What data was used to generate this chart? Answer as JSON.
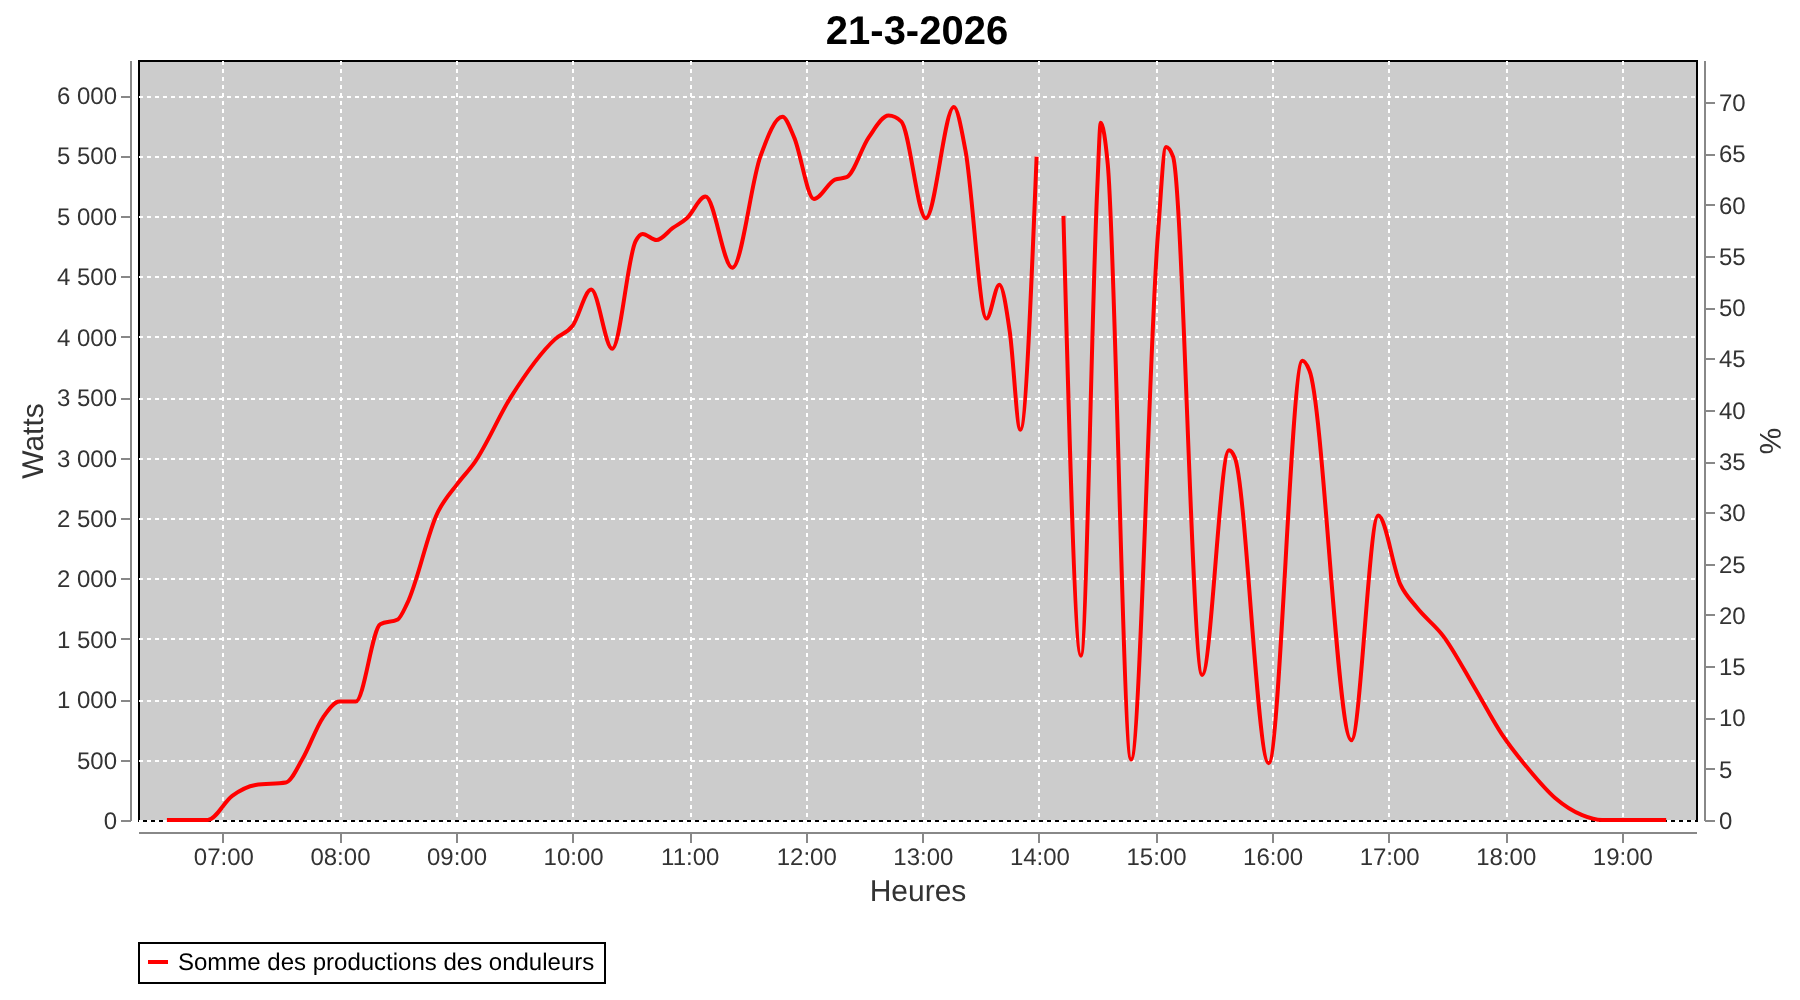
{
  "chart_data": {
    "type": "line",
    "title": "21-3-2026",
    "xlabel": "Heures",
    "ylabel": "Watts",
    "y2label": "%",
    "x": [
      6.52,
      6.87,
      7.08,
      7.28,
      7.54,
      7.68,
      7.86,
      8.0,
      8.14,
      8.35,
      8.5,
      8.58,
      8.84,
      9.01,
      9.16,
      9.47,
      9.85,
      10.0,
      10.16,
      10.34,
      10.54,
      10.6,
      10.72,
      10.86,
      10.98,
      11.14,
      11.37,
      11.61,
      11.8,
      11.9,
      12.07,
      12.25,
      12.35,
      12.54,
      12.71,
      12.82,
      13.03,
      13.27,
      13.37,
      13.55,
      13.66,
      13.75,
      13.84,
      13.98,
      14.04,
      14.17,
      14.21,
      14.36,
      14.5,
      14.53,
      14.59,
      14.79,
      15.02,
      15.09,
      15.15,
      15.4,
      15.63,
      15.68,
      15.97,
      16.26,
      16.32,
      16.68,
      16.91,
      17.1,
      17.24,
      17.47,
      17.74,
      17.97,
      18.2,
      18.43,
      18.66,
      18.83,
      19.38
    ],
    "series": [
      {
        "name": "Somme des productions des onduleurs",
        "color": "#ff0000",
        "values": [
          0,
          0,
          200,
          290,
          310,
          500,
          850,
          980,
          980,
          1620,
          1660,
          1790,
          2540,
          2780,
          2960,
          3500,
          3980,
          4090,
          4390,
          3900,
          4790,
          4850,
          4800,
          4900,
          4980,
          5160,
          4570,
          5490,
          5820,
          5650,
          5140,
          5300,
          5320,
          5650,
          5830,
          5780,
          4980,
          5900,
          5540,
          4150,
          4430,
          4040,
          3230,
          5490,
          null,
          null,
          5000,
          1360,
          5220,
          5770,
          5430,
          500,
          4840,
          5570,
          5490,
          1200,
          3060,
          3000,
          470,
          3800,
          3720,
          660,
          2520,
          1950,
          1760,
          1520,
          1090,
          710,
          420,
          180,
          40,
          0,
          0
        ]
      }
    ],
    "xlim": [
      6.272,
      19.636
    ],
    "xticks": [
      {
        "value": 7,
        "label": "07:00"
      },
      {
        "value": 8,
        "label": "08:00"
      },
      {
        "value": 9,
        "label": "09:00"
      },
      {
        "value": 10,
        "label": "10:00"
      },
      {
        "value": 11,
        "label": "11:00"
      },
      {
        "value": 12,
        "label": "12:00"
      },
      {
        "value": 13,
        "label": "13:00"
      },
      {
        "value": 14,
        "label": "14:00"
      },
      {
        "value": 15,
        "label": "15:00"
      },
      {
        "value": 16,
        "label": "16:00"
      },
      {
        "value": 17,
        "label": "17:00"
      },
      {
        "value": 18,
        "label": "18:00"
      },
      {
        "value": 19,
        "label": "19:00"
      }
    ],
    "ylim": [
      0,
      6290
    ],
    "yticks": [
      0,
      500,
      {
        "value": 1000,
        "label": "1 000"
      },
      {
        "value": 1500,
        "label": "1 500"
      },
      {
        "value": 2000,
        "label": "2 000"
      },
      {
        "value": 2500,
        "label": "2 500"
      },
      {
        "value": 3000,
        "label": "3 000"
      },
      {
        "value": 3500,
        "label": "3 500"
      },
      {
        "value": 4000,
        "label": "4 000"
      },
      {
        "value": 4500,
        "label": "4 500"
      },
      {
        "value": 5000,
        "label": "5 000"
      },
      {
        "value": 5500,
        "label": "5 500"
      },
      {
        "value": 6000,
        "label": "6 000"
      }
    ],
    "y2lim": [
      0,
      74.1
    ],
    "y2ticks": [
      0,
      5,
      10,
      15,
      20,
      25,
      30,
      35,
      40,
      45,
      50,
      55,
      60,
      65,
      70
    ],
    "grid": true,
    "legend": "bottom"
  }
}
